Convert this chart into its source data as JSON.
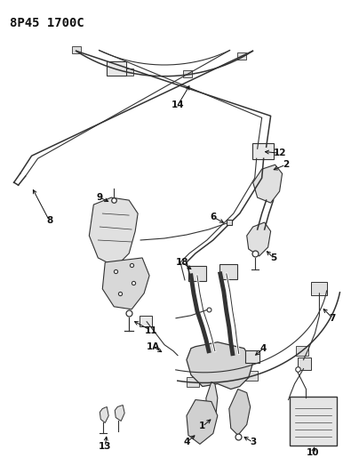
{
  "title": "8P45 1700C",
  "bg_color": "#ffffff",
  "lc": "#333333",
  "title_fontsize": 10,
  "label_fontsize": 7.5,
  "figsize": [
    3.95,
    5.33
  ],
  "dpi": 100
}
